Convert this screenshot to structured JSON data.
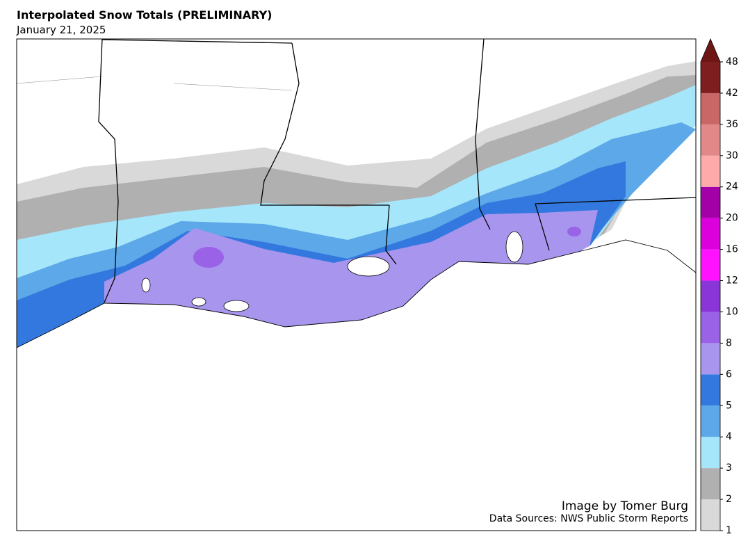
{
  "header": {
    "title": "Interpolated Snow Totals (PRELIMINARY)",
    "subtitle": "January 21, 2025"
  },
  "credits": {
    "author": "Image by Tomer Burg",
    "sources": "Data Sources: NWS Public Storm Reports"
  },
  "colorbar": {
    "levels": [
      1,
      2,
      3,
      4,
      5,
      6,
      8,
      10,
      12,
      16,
      20,
      24,
      30,
      36,
      42,
      48
    ],
    "colors": [
      "#d9d9d9",
      "#b0b0b0",
      "#a6e6fa",
      "#5ca8e8",
      "#3378de",
      "#a895ee",
      "#9a62e6",
      "#8a35d8",
      "#ff12ff",
      "#dc00dc",
      "#a400a8",
      "#ffaaaa",
      "#e38888",
      "#c96666",
      "#7f1e1e"
    ],
    "extend_color": "#6e1616"
  }
}
